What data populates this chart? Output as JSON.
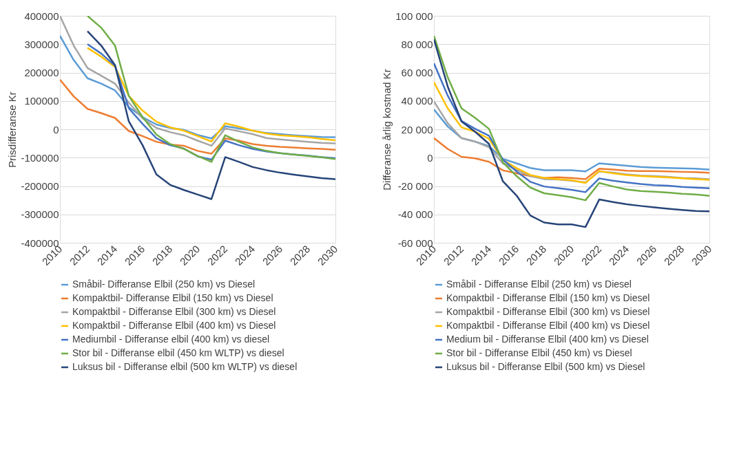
{
  "chart_data": [
    {
      "type": "line",
      "ylabel": "Prisdifferanse Kr",
      "x": [
        2010,
        2011,
        2012,
        2013,
        2014,
        2015,
        2016,
        2017,
        2018,
        2019,
        2020,
        2021,
        2022,
        2023,
        2024,
        2025,
        2026,
        2027,
        2028,
        2029,
        2030
      ],
      "xlim": [
        2010,
        2030
      ],
      "xticks": [
        2010,
        2012,
        2014,
        2016,
        2018,
        2020,
        2022,
        2024,
        2026,
        2028,
        2030
      ],
      "ylim": [
        -400000,
        400000
      ],
      "yticks": [
        -400000,
        -300000,
        -200000,
        -100000,
        0,
        100000,
        200000,
        300000,
        400000
      ],
      "grid": "y",
      "legend": "bottom",
      "marker": "none",
      "line_style": "solid",
      "series": [
        {
          "name": "Småbil- Differanse Elbil (250 km) vs Diesel",
          "color": "#5b9bd5",
          "values": [
            330000,
            244000,
            180000,
            161000,
            137000,
            78000,
            43000,
            17000,
            5000,
            -2000,
            -20000,
            -32000,
            11000,
            3000,
            -5000,
            -13000,
            -17000,
            -21000,
            -24000,
            -27000,
            -28000
          ]
        },
        {
          "name": "Kompaktbil- Differanse Elbil (150 km) vs Diesel",
          "color": "#ed7d31",
          "values": [
            175000,
            116000,
            72000,
            57000,
            40000,
            -6000,
            -24000,
            -44000,
            -54000,
            -58000,
            -76000,
            -86000,
            -32000,
            -40000,
            -52000,
            -58000,
            -62000,
            -64000,
            -67000,
            -69000,
            -72000
          ]
        },
        {
          "name": "Kompaktbil - Differanse Elbil (300 km) vs Diesel",
          "color": "#a5a5a5",
          "values": [
            400000,
            295000,
            216000,
            189000,
            161000,
            94000,
            39000,
            5000,
            -10000,
            -21000,
            -40000,
            -58000,
            3000,
            -7000,
            -17000,
            -31000,
            -36000,
            -40000,
            -44000,
            -48000,
            -50000
          ]
        },
        {
          "name": "Kompaktbil - Differanse Elbil (400 km) vs Diesel",
          "color": "#ffc000",
          "values": [
            null,
            null,
            287000,
            256000,
            220000,
            118000,
            66000,
            27000,
            7000,
            -5000,
            -24000,
            -43000,
            21000,
            9000,
            -5000,
            -15000,
            -21000,
            -24000,
            -28000,
            -34000,
            -39000
          ]
        },
        {
          "name": "Mediumbil - Differanse elbil (400 km) vs diesel",
          "color": "#4472c4",
          "values": [
            null,
            null,
            300000,
            267000,
            224000,
            74000,
            19000,
            -31000,
            -56000,
            -68000,
            -95000,
            -107000,
            -40000,
            -56000,
            -69000,
            -78000,
            -84000,
            -89000,
            -93000,
            -98000,
            -102000
          ]
        },
        {
          "name": "Stor bil - Differanse elbil (450 km WLTP) vs diesel",
          "color": "#70ad47",
          "values": [
            null,
            null,
            400000,
            358000,
            295000,
            118000,
            43000,
            -18000,
            -52000,
            -69000,
            -94000,
            -115000,
            -21000,
            -44000,
            -64000,
            -76000,
            -84000,
            -89000,
            -94000,
            -99000,
            -105000
          ]
        },
        {
          "name": "Luksus bil - Differanse elbil (500 km WLTP) vs diesel",
          "color": "#264478",
          "values": [
            null,
            null,
            346000,
            295000,
            226000,
            28000,
            -56000,
            -159000,
            -196000,
            -214000,
            -230000,
            -246000,
            -98000,
            -115000,
            -133000,
            -144000,
            -153000,
            -160000,
            -166000,
            -172000,
            -176000
          ]
        }
      ]
    },
    {
      "type": "line",
      "ylabel": "Differanse årlig kostnad Kr",
      "x": [
        2010,
        2011,
        2012,
        2013,
        2014,
        2015,
        2016,
        2017,
        2018,
        2019,
        2020,
        2021,
        2022,
        2023,
        2024,
        2025,
        2026,
        2027,
        2028,
        2029,
        2030
      ],
      "xlim": [
        2010,
        2030
      ],
      "xticks": [
        2010,
        2012,
        2014,
        2016,
        2018,
        2020,
        2022,
        2024,
        2026,
        2028,
        2030
      ],
      "ylim": [
        -60000,
        100000
      ],
      "yticks": [
        {
          "value": -60000,
          "label": "-60 000"
        },
        {
          "value": -40000,
          "label": "-40 000"
        },
        {
          "value": -20000,
          "label": "-20 000"
        },
        0,
        {
          "value": 20000,
          "label": "20 000"
        },
        {
          "value": 40000,
          "label": "40 000"
        },
        {
          "value": 60000,
          "label": "60 000"
        },
        {
          "value": 80000,
          "label": "80 000"
        },
        {
          "value": 100000,
          "label": "100 000"
        }
      ],
      "grid": "y",
      "legend": "bottom",
      "marker": "none",
      "line_style": "solid",
      "series": [
        {
          "name": "Småbil - Differanse Elbil (250 km) vs Diesel",
          "color": "#5b9bd5",
          "values": [
            34000,
            22000,
            13800,
            11300,
            8100,
            -800,
            -4000,
            -7300,
            -8900,
            -8900,
            -8900,
            -9700,
            -4000,
            -4900,
            -5700,
            -6500,
            -7000,
            -7300,
            -7500,
            -7800,
            -8400
          ]
        },
        {
          "name": "Kompaktbil - Differanse Elbil (150 km) vs Diesel",
          "color": "#ed7d31",
          "values": [
            13800,
            6200,
            600,
            -500,
            -2900,
            -8900,
            -11000,
            -13000,
            -14300,
            -13800,
            -14300,
            -15100,
            -7800,
            -8400,
            -9200,
            -9400,
            -9400,
            -9700,
            -10000,
            -10200,
            -10700
          ]
        },
        {
          "name": "Kompaktbil - Differanse Elbil (300 km) vs Diesel",
          "color": "#a5a5a5",
          "values": [
            39700,
            24300,
            13800,
            11300,
            7300,
            -4000,
            -8600,
            -13000,
            -15100,
            -15400,
            -16200,
            -17500,
            -9700,
            -10500,
            -11700,
            -12600,
            -13000,
            -13500,
            -14300,
            -14600,
            -15100
          ]
        },
        {
          "name": "Kompaktbil - Differanse Elbil (400 km) vs Diesel",
          "color": "#ffc000",
          "values": [
            53200,
            34800,
            21400,
            18300,
            13300,
            -1600,
            -7300,
            -12200,
            -14300,
            -15100,
            -15900,
            -17800,
            -9400,
            -11000,
            -12200,
            -13000,
            -13500,
            -13900,
            -14600,
            -15100,
            -15600
          ]
        },
        {
          "name": "Medium bil - Differanse Elbil (400 km) vs Diesel",
          "color": "#4472c4",
          "values": [
            66500,
            43800,
            25900,
            20300,
            15400,
            -1300,
            -9700,
            -17000,
            -20300,
            -21400,
            -22700,
            -24300,
            -14600,
            -16200,
            -17500,
            -18600,
            -19400,
            -19800,
            -20600,
            -21100,
            -21600
          ]
        },
        {
          "name": "Stor bil - Differanse Elbil (450 km) vs Diesel",
          "color": "#70ad47",
          "values": [
            85900,
            56700,
            34800,
            28000,
            20300,
            -3200,
            -13000,
            -21100,
            -25100,
            -26400,
            -27900,
            -30000,
            -17800,
            -20300,
            -22400,
            -23500,
            -24000,
            -24600,
            -25400,
            -25900,
            -26900
          ]
        },
        {
          "name": "Luksus bil - Differanse Elbil (500 km) vs Diesel",
          "color": "#264478",
          "values": [
            83500,
            50200,
            25600,
            18200,
            9700,
            -16500,
            -26700,
            -40800,
            -45700,
            -47000,
            -47000,
            -48900,
            -29500,
            -31300,
            -32900,
            -34000,
            -35000,
            -36000,
            -36800,
            -37600,
            -37800
          ]
        }
      ]
    }
  ]
}
